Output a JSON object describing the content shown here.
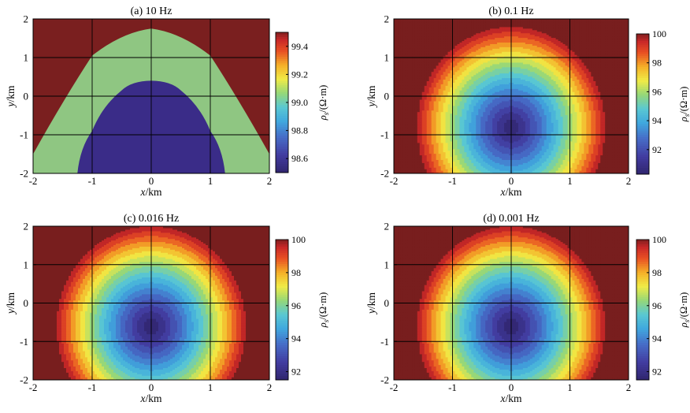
{
  "chart_data": [
    {
      "type": "heatmap",
      "title": "(a) 10 Hz",
      "xlabel_var": "x",
      "xlabel_unit": "/km",
      "ylabel_var": "y",
      "ylabel_unit": "/km",
      "xlim": [
        -2,
        2
      ],
      "ylim": [
        -2,
        2
      ],
      "xticks": [
        "-2",
        "-1",
        "0",
        "1",
        "2"
      ],
      "yticks": [
        "-2",
        "-1",
        "0",
        "1",
        "2"
      ],
      "grid": true,
      "colorbar": {
        "label_var": "ρ",
        "label_sub": "s",
        "label_unit": "/(Ω·m)",
        "range": [
          98.5,
          99.5
        ],
        "ticks": [
          "98.6",
          "98.8",
          "99.0",
          "99.2",
          "99.4"
        ],
        "tick_values": [
          98.6,
          98.8,
          99.0,
          99.2,
          99.4
        ],
        "colormap": "jet-dark"
      },
      "regions": [
        {
          "level": "outer",
          "value": 99.5,
          "color": "#7a1f1f"
        },
        {
          "level": "middle",
          "value": 99.0,
          "color": "#8fc682"
        },
        {
          "level": "inner",
          "value": 98.55,
          "color": "#3a2c88"
        }
      ],
      "boundaries": {
        "outer_arc": {
          "x": [
            -2.0,
            -1.0,
            0.0,
            1.0,
            2.0
          ],
          "y": [
            -1.5,
            1.05,
            1.75,
            1.05,
            -1.5
          ]
        },
        "inner_arc": {
          "x": [
            -1.25,
            -1.0,
            -0.5,
            0.0,
            0.5,
            1.0,
            1.25
          ],
          "y": [
            -2.0,
            -0.9,
            0.15,
            0.4,
            0.15,
            -0.9,
            -2.0
          ]
        }
      }
    },
    {
      "type": "heatmap",
      "title": "(b) 0.1 Hz",
      "xlabel_var": "x",
      "xlabel_unit": "/km",
      "ylabel_var": "y",
      "ylabel_unit": "/km",
      "xlim": [
        -2,
        2
      ],
      "ylim": [
        -2,
        2
      ],
      "xticks": [
        "-2",
        "-1",
        "0",
        "1",
        "2"
      ],
      "yticks": [
        "-2",
        "-1",
        "0",
        "1",
        "2"
      ],
      "grid": true,
      "colorbar": {
        "label_var": "ρ",
        "label_sub": "s",
        "label_unit": "/(Ω·m)",
        "range": [
          90.3,
          100
        ],
        "ticks": [
          "92",
          "94",
          "96",
          "98",
          "100"
        ],
        "tick_values": [
          92,
          94,
          96,
          98,
          100
        ],
        "colormap": "jet-dark"
      },
      "field": {
        "center": [
          0,
          -0.8
        ],
        "min_value": 90.5,
        "max_value": 100,
        "levels": 18
      }
    },
    {
      "type": "heatmap",
      "title": "(c) 0.016 Hz",
      "xlabel_var": "x",
      "xlabel_unit": "/km",
      "ylabel_var": "y",
      "ylabel_unit": "/km",
      "xlim": [
        -2,
        2
      ],
      "ylim": [
        -2,
        2
      ],
      "xticks": [
        "-2",
        "-1",
        "0",
        "1",
        "2"
      ],
      "yticks": [
        "-2",
        "-1",
        "0",
        "1",
        "2"
      ],
      "grid": true,
      "colorbar": {
        "label_var": "ρ",
        "label_sub": "s",
        "label_unit": "/(Ω·m)",
        "range": [
          91.5,
          100
        ],
        "ticks": [
          "92",
          "94",
          "96",
          "98",
          "100"
        ],
        "tick_values": [
          92,
          94,
          96,
          98,
          100
        ],
        "colormap": "jet-dark"
      },
      "field": {
        "center": [
          0,
          -0.6
        ],
        "min_value": 91.6,
        "max_value": 100,
        "levels": 18
      }
    },
    {
      "type": "heatmap",
      "title": "(d) 0.001 Hz",
      "xlabel_var": "x",
      "xlabel_unit": "/km",
      "ylabel_var": "y",
      "ylabel_unit": "/km",
      "xlim": [
        -2,
        2
      ],
      "ylim": [
        -2,
        2
      ],
      "xticks": [
        "-2",
        "-1",
        "0",
        "1",
        "2"
      ],
      "yticks": [
        "-2",
        "-1",
        "0",
        "1",
        "2"
      ],
      "grid": true,
      "colorbar": {
        "label_var": "ρ",
        "label_sub": "s",
        "label_unit": "/(Ω·m)",
        "range": [
          91.5,
          100
        ],
        "ticks": [
          "92",
          "94",
          "96",
          "98",
          "100"
        ],
        "tick_values": [
          92,
          94,
          96,
          98,
          100
        ],
        "colormap": "jet-dark"
      },
      "field": {
        "center": [
          0,
          -0.6
        ],
        "min_value": 91.6,
        "max_value": 100,
        "levels": 18
      }
    }
  ]
}
